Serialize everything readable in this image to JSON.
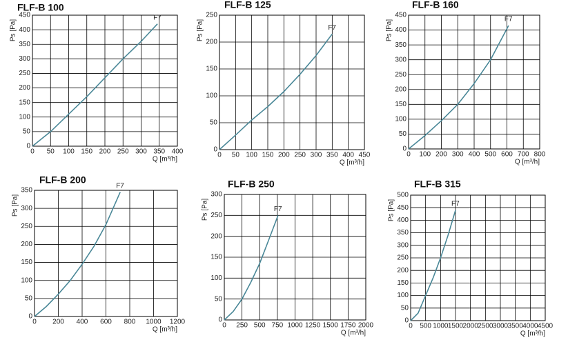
{
  "chart_data": [
    {
      "type": "line",
      "title": "FLF-B 100",
      "y_label": "Ps [Pa]",
      "x_label": "Q [m³/h]",
      "annotation": "F7",
      "color": "#4a8898",
      "grid": true,
      "x": [
        0,
        50,
        100,
        150,
        200,
        250,
        300,
        345
      ],
      "values": [
        0,
        50,
        110,
        170,
        235,
        300,
        360,
        420
      ],
      "xlim": [
        0,
        400
      ],
      "xticks": [
        0,
        50,
        100,
        150,
        200,
        250,
        300,
        350,
        400
      ],
      "ylim": [
        0,
        450
      ],
      "yticks": [
        0,
        50,
        100,
        150,
        200,
        250,
        300,
        350,
        400,
        450
      ]
    },
    {
      "type": "line",
      "title": "FLF-B 125",
      "y_label": "Ps [Pa]",
      "x_label": "Q [m³/h]",
      "annotation": "F7",
      "color": "#4a8898",
      "grid": true,
      "x": [
        0,
        50,
        100,
        150,
        200,
        250,
        300,
        350
      ],
      "values": [
        0,
        27,
        55,
        80,
        108,
        140,
        175,
        215
      ],
      "xlim": [
        0,
        450
      ],
      "xticks": [
        0,
        50,
        100,
        150,
        200,
        250,
        300,
        350,
        400,
        450
      ],
      "ylim": [
        0,
        250
      ],
      "yticks": [
        0,
        50,
        100,
        150,
        200,
        250
      ]
    },
    {
      "type": "line",
      "title": "FLF-B 160",
      "y_label": "Ps [Pa]",
      "x_label": "Q [m³/h]",
      "annotation": "F7",
      "color": "#4a8898",
      "grid": true,
      "x": [
        0,
        100,
        200,
        300,
        400,
        500,
        610
      ],
      "values": [
        0,
        45,
        95,
        150,
        220,
        300,
        415
      ],
      "xlim": [
        0,
        800
      ],
      "xticks": [
        0,
        100,
        200,
        300,
        400,
        500,
        600,
        700,
        800
      ],
      "ylim": [
        0,
        450
      ],
      "yticks": [
        0,
        50,
        100,
        150,
        200,
        250,
        300,
        350,
        400,
        450
      ]
    },
    {
      "type": "line",
      "title": "FLF-B 200",
      "y_label": "Ps [Pa]",
      "x_label": "Q [m³/h]",
      "annotation": "F7",
      "color": "#4a8898",
      "grid": true,
      "x": [
        0,
        100,
        200,
        300,
        400,
        500,
        600,
        720
      ],
      "values": [
        0,
        28,
        62,
        100,
        145,
        195,
        255,
        345
      ],
      "xlim": [
        0,
        1200
      ],
      "xticks": [
        0,
        200,
        400,
        600,
        800,
        1000,
        1200
      ],
      "ylim": [
        0,
        350
      ],
      "yticks": [
        0,
        50,
        100,
        150,
        200,
        250,
        300,
        350
      ]
    },
    {
      "type": "line",
      "title": "FLF-B 250",
      "y_label": "Ps [Pa]",
      "x_label": "Q [m³/h]",
      "annotation": "F7",
      "color": "#4a8898",
      "grid": true,
      "x": [
        0,
        125,
        250,
        375,
        500,
        625,
        760
      ],
      "values": [
        0,
        20,
        50,
        90,
        135,
        190,
        250
      ],
      "xlim": [
        0,
        2000
      ],
      "xticks": [
        0,
        250,
        500,
        750,
        1000,
        1250,
        1500,
        1750,
        2000
      ],
      "ylim": [
        0,
        300
      ],
      "yticks": [
        0,
        50,
        100,
        150,
        200,
        250,
        300
      ]
    },
    {
      "type": "line",
      "title": "FLF-B 315",
      "y_label": "Ps [Pa]",
      "x_label": "Q [m³/h]",
      "annotation": "F7",
      "color": "#4a8898",
      "grid": true,
      "x": [
        0,
        250,
        500,
        750,
        1000,
        1250,
        1500
      ],
      "values": [
        0,
        30,
        100,
        170,
        250,
        340,
        440
      ],
      "xlim": [
        0,
        4500
      ],
      "xticks": [
        0,
        500,
        1000,
        1500,
        2000,
        2500,
        3000,
        3500,
        4000,
        4500
      ],
      "ylim": [
        0,
        500
      ],
      "yticks": [
        0,
        50,
        100,
        150,
        200,
        250,
        300,
        350,
        400,
        450,
        500
      ]
    }
  ]
}
